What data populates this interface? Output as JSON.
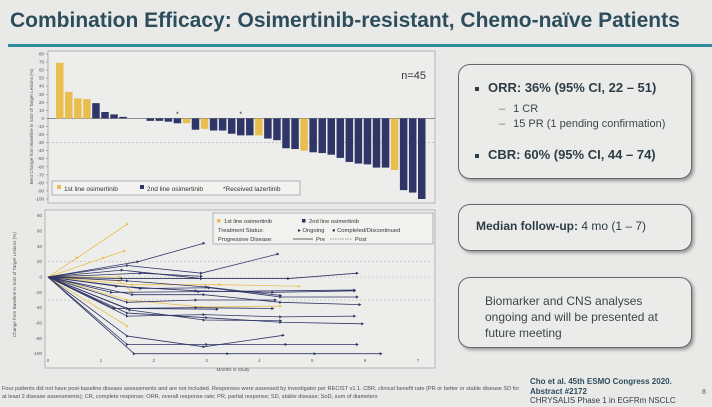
{
  "title": "Combination Efficacy: Osimertinib-resistant, Chemo-naïve Patients",
  "colors": {
    "first_line": "#e8bf4f",
    "second_line": "#2f3566",
    "accent": "#2f8d9a"
  },
  "chart_data": [
    {
      "type": "bar",
      "title": "",
      "annotation": "n=45",
      "ylabel": "Best Change from Baseline in SoD of Target Lesions (%)",
      "ylim": [
        -100,
        80
      ],
      "yticks": [
        80,
        70,
        60,
        50,
        40,
        30,
        20,
        10,
        0,
        -10,
        -20,
        -30,
        -40,
        -50,
        -60,
        -70,
        -80,
        -90,
        -100
      ],
      "reference_line": -30,
      "legend": {
        "placement": "bottom-left",
        "first_line": "1st line osimertinib",
        "second_line": "2nd line osimertinib",
        "lazertinib": "*Received lazertinib"
      },
      "series_key": {
        "Y": "1st line osimertinib",
        "N": "2nd line osimertinib"
      },
      "bars": [
        {
          "v": 69,
          "g": "Y"
        },
        {
          "v": 33,
          "g": "Y"
        },
        {
          "v": 25,
          "g": "Y"
        },
        {
          "v": 24,
          "g": "Y"
        },
        {
          "v": 19,
          "g": "N"
        },
        {
          "v": 8,
          "g": "N"
        },
        {
          "v": 5,
          "g": "N"
        },
        {
          "v": 2,
          "g": "N"
        },
        {
          "v": 0,
          "g": "N"
        },
        {
          "v": 0,
          "g": "N"
        },
        {
          "v": -3,
          "g": "N"
        },
        {
          "v": -3,
          "g": "N"
        },
        {
          "v": -4,
          "g": "N"
        },
        {
          "v": -6,
          "g": "N",
          "star": true
        },
        {
          "v": -6,
          "g": "Y"
        },
        {
          "v": -14,
          "g": "N"
        },
        {
          "v": -13,
          "g": "Y"
        },
        {
          "v": -15,
          "g": "N"
        },
        {
          "v": -15,
          "g": "N"
        },
        {
          "v": -19,
          "g": "N"
        },
        {
          "v": -21,
          "g": "N",
          "star": true
        },
        {
          "v": -21,
          "g": "N"
        },
        {
          "v": -21,
          "g": "Y"
        },
        {
          "v": -25,
          "g": "N"
        },
        {
          "v": -27,
          "g": "N"
        },
        {
          "v": -37,
          "g": "N"
        },
        {
          "v": -38,
          "g": "N"
        },
        {
          "v": -40,
          "g": "Y"
        },
        {
          "v": -42,
          "g": "N"
        },
        {
          "v": -43,
          "g": "N"
        },
        {
          "v": -45,
          "g": "N"
        },
        {
          "v": -49,
          "g": "N"
        },
        {
          "v": -54,
          "g": "N"
        },
        {
          "v": -56,
          "g": "N"
        },
        {
          "v": -57,
          "g": "N"
        },
        {
          "v": -61,
          "g": "N"
        },
        {
          "v": -61,
          "g": "N"
        },
        {
          "v": -64,
          "g": "Y"
        },
        {
          "v": -89,
          "g": "N"
        },
        {
          "v": -92,
          "g": "N"
        },
        {
          "v": -100,
          "g": "N"
        }
      ]
    },
    {
      "type": "line",
      "xlabel": "Months in Study",
      "ylabel": "Change from Baseline in SoD of Target Lesions (%)",
      "xlim": [
        0,
        7
      ],
      "ylim": [
        -100,
        80
      ],
      "xticks": [
        0,
        1,
        2,
        3,
        4,
        5,
        6,
        7
      ],
      "yticks": [
        80,
        60,
        40,
        20,
        0,
        -20,
        -40,
        -60,
        -80,
        -100
      ],
      "reference_lines": [
        20,
        0,
        -30
      ],
      "legend": {
        "placement": "top-right",
        "first_line": "1st line osimertinib",
        "second_line": "2nd line osimertinib",
        "status_label": "Treatment Status:",
        "ongoing": "Ongoing",
        "completed": "Completed/Discontinued",
        "pd_label": "Progressive Disease:",
        "pre": "Pre",
        "post": "Post"
      },
      "series": [
        {
          "g": "Y",
          "pts": [
            [
              0,
              0
            ],
            [
              0.55,
              25
            ],
            [
              1.5,
              69
            ]
          ]
        },
        {
          "g": "Y",
          "pts": [
            [
              0,
              0
            ],
            [
              1.05,
              25
            ],
            [
              1.45,
              34
            ]
          ]
        },
        {
          "g": "Y",
          "pts": [
            [
              0,
              0
            ],
            [
              1.5,
              -64
            ]
          ]
        },
        {
          "g": "Y",
          "pts": [
            [
              0,
              0
            ],
            [
              1.35,
              0
            ]
          ]
        },
        {
          "g": "Y",
          "pts": [
            [
              0,
              0
            ],
            [
              1.6,
              -10
            ],
            [
              3.25,
              -10
            ],
            [
              4.75,
              -12
            ]
          ]
        },
        {
          "g": "Y",
          "pts": [
            [
              0,
              0
            ],
            [
              1.35,
              -5
            ],
            [
              1.6,
              -20
            ]
          ]
        },
        {
          "g": "Y",
          "pts": [
            [
              0,
              0
            ],
            [
              1.5,
              -30
            ],
            [
              2.9,
              -39
            ],
            [
              4.4,
              -38
            ]
          ]
        },
        {
          "g": "N",
          "pts": [
            [
              0,
              0
            ],
            [
              1.7,
              20
            ],
            [
              2.95,
              44
            ]
          ]
        },
        {
          "g": "N",
          "pts": [
            [
              0,
              0
            ],
            [
              1.5,
              15
            ],
            [
              2.9,
              5
            ],
            [
              4.35,
              30
            ]
          ]
        },
        {
          "g": "N",
          "pts": [
            [
              0,
              0
            ],
            [
              1.4,
              9
            ],
            [
              2.9,
              -2
            ]
          ]
        },
        {
          "g": "N",
          "pts": [
            [
              0,
              0
            ],
            [
              1.75,
              5
            ],
            [
              2.9,
              1
            ]
          ]
        },
        {
          "g": "N",
          "pts": [
            [
              0,
              0
            ],
            [
              1.4,
              -2
            ],
            [
              4.55,
              -2
            ],
            [
              5.85,
              5
            ]
          ]
        },
        {
          "g": "N",
          "pts": [
            [
              0,
              0
            ],
            [
              1.5,
              -5
            ],
            [
              3.0,
              -13
            ],
            [
              4.4,
              -24
            ]
          ]
        },
        {
          "g": "N",
          "pts": [
            [
              0,
              0
            ],
            [
              1.3,
              -12
            ],
            [
              2.8,
              -18
            ],
            [
              4.25,
              -20
            ],
            [
              5.8,
              -18
            ]
          ]
        },
        {
          "g": "N",
          "pts": [
            [
              0,
              0
            ],
            [
              1.75,
              -15
            ],
            [
              3.05,
              -14
            ],
            [
              4.4,
              -26
            ],
            [
              5.85,
              -26
            ]
          ]
        },
        {
          "g": "N",
          "pts": [
            [
              0,
              0
            ],
            [
              1.2,
              -20
            ],
            [
              2.85,
              -19
            ],
            [
              5.8,
              -17
            ]
          ]
        },
        {
          "g": "N",
          "pts": [
            [
              0,
              0
            ],
            [
              1.6,
              -23
            ],
            [
              2.95,
              -23
            ],
            [
              4.4,
              -33
            ],
            [
              5.9,
              -36
            ]
          ]
        },
        {
          "g": "N",
          "pts": [
            [
              0,
              0
            ],
            [
              1.5,
              -33
            ],
            [
              2.8,
              -30
            ],
            [
              4.3,
              -30
            ]
          ]
        },
        {
          "g": "N",
          "pts": [
            [
              0,
              0
            ],
            [
              1.25,
              -41
            ],
            [
              2.8,
              -40
            ],
            [
              4.25,
              -41
            ]
          ]
        },
        {
          "g": "N",
          "pts": [
            [
              0,
              0
            ],
            [
              1.5,
              -41
            ],
            [
              3.2,
              -42
            ]
          ]
        },
        {
          "g": "N",
          "pts": [
            [
              0,
              0
            ],
            [
              1.5,
              -51
            ],
            [
              2.95,
              -49
            ],
            [
              4.4,
              -52
            ],
            [
              5.8,
              -51
            ]
          ]
        },
        {
          "g": "N",
          "pts": [
            [
              0,
              0
            ],
            [
              1.55,
              -43
            ],
            [
              2.95,
              -56
            ],
            [
              4.4,
              -57
            ]
          ]
        },
        {
          "g": "N",
          "pts": [
            [
              0,
              0
            ],
            [
              1.5,
              -47
            ],
            [
              3.0,
              -53
            ],
            [
              4.4,
              -59
            ],
            [
              5.95,
              -61
            ]
          ]
        },
        {
          "g": "N",
          "pts": [
            [
              0,
              0
            ],
            [
              1.5,
              -77
            ],
            [
              2.95,
              -91
            ],
            [
              4.45,
              -76
            ]
          ]
        },
        {
          "g": "N",
          "pts": [
            [
              0,
              0
            ],
            [
              1.5,
              -88
            ],
            [
              3.0,
              -88
            ],
            [
              4.5,
              -88
            ],
            [
              5.85,
              -88
            ]
          ]
        },
        {
          "g": "N",
          "pts": [
            [
              0,
              0
            ],
            [
              1.63,
              -100
            ],
            [
              3.4,
              -100
            ],
            [
              5.05,
              -100
            ],
            [
              6.3,
              -100
            ]
          ]
        }
      ]
    }
  ],
  "orr_box": {
    "orr": "ORR: 36% (95% CI, 22 – 51)",
    "cr": "1 CR",
    "pr": "15 PR (1 pending confirmation)",
    "cbr": "CBR: 60% (95% CI, 44 – 74)",
    "dash": "–"
  },
  "median_box": {
    "label": "Median follow-up:",
    "value": "4 mo (1 – 7)"
  },
  "biomarker_box": {
    "text": "Biomarker and CNS analyses ongoing and will be presented at future meeting"
  },
  "footnote": "Four patients did not have post-baseline disease assessments and are not included. Responses were assessed by investigator per RECIST v1.1. CBR, clinical benefit rate (PR or better or stable disease SD for at least 2 disease assessments); CR, complete response; ORR, overall response rate; PR, partial response; SD, stable disease; SoD, sum of diameters",
  "citation": {
    "line1": "Cho et al. 45th ESMO Congress 2020. Abstract #2172",
    "line2": "CHRYSALIS Phase 1 in EGFRm NSCLC"
  },
  "page_number": "8"
}
